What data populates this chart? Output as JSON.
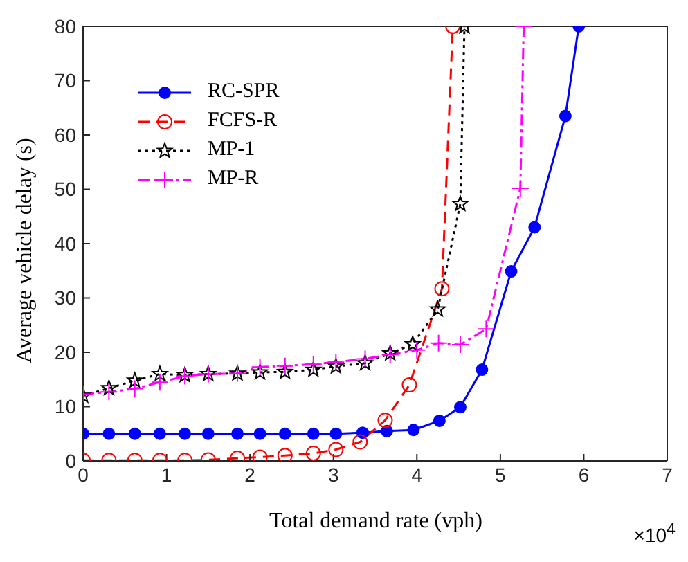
{
  "chart_data": {
    "type": "line",
    "xlabel": "Total demand rate (vph)",
    "ylabel": "Average vehicle delay (s)",
    "xlim": [
      0,
      7
    ],
    "xticks": [
      0,
      1,
      2,
      3,
      4,
      5,
      6,
      7
    ],
    "ylim": [
      0,
      80
    ],
    "yticks": [
      0,
      10,
      20,
      30,
      40,
      50,
      60,
      70,
      80
    ],
    "grid": false,
    "legend": "top left",
    "annotations": [
      "×10$^{4}$"
    ],
    "series": [
      {
        "name": "RC-SPR",
        "color": "#0000ff",
        "marker": "circle",
        "line_style": "solid",
        "x": [
          0,
          0.31,
          0.62,
          0.92,
          1.22,
          1.5,
          1.85,
          2.12,
          2.42,
          2.76,
          3.03,
          3.35,
          3.64,
          3.96,
          4.27,
          4.52,
          4.78,
          5.13,
          5.41,
          5.78,
          5.94
        ],
        "values": [
          5,
          5,
          5,
          5,
          5,
          5,
          5,
          5,
          5,
          5,
          5,
          5.2,
          5.5,
          5.7,
          7.4,
          9.9,
          16.8,
          34.9,
          43,
          63.5,
          80
        ]
      },
      {
        "name": "FCFS-R",
        "color": "#ff0000",
        "marker": "open-circle",
        "line_style": "dashed",
        "x": [
          0,
          0.31,
          0.62,
          0.92,
          1.22,
          1.5,
          1.85,
          2.12,
          2.42,
          2.76,
          3.03,
          3.32,
          3.62,
          3.91,
          4.3,
          4.43
        ],
        "values": [
          0.1,
          0.1,
          0.1,
          0.1,
          0.1,
          0.2,
          0.5,
          0.7,
          1,
          1.4,
          2.1,
          3.5,
          7.5,
          14,
          31.7,
          80
        ]
      },
      {
        "name": "MP-1",
        "color": "#000000",
        "marker": "star",
        "line_style": "dotted",
        "x": [
          0,
          0.31,
          0.62,
          0.92,
          1.22,
          1.5,
          1.85,
          2.12,
          2.42,
          2.76,
          3.03,
          3.38,
          3.68,
          3.95,
          4.25,
          4.52,
          4.57
        ],
        "values": [
          12,
          13.4,
          14.8,
          16,
          15.8,
          16,
          16.1,
          16.3,
          16.4,
          16.8,
          17.4,
          18,
          19.8,
          21.5,
          27.9,
          47.3,
          80
        ]
      },
      {
        "name": "MP-R",
        "color": "#ff00ff",
        "marker": "cross",
        "line_style": "dashdot",
        "x": [
          0,
          0.31,
          0.62,
          0.92,
          1.22,
          1.5,
          1.85,
          2.12,
          2.42,
          2.76,
          3.03,
          3.38,
          3.68,
          4,
          4.26,
          4.52,
          4.83,
          5.24,
          5.28
        ],
        "values": [
          12.3,
          12.7,
          13.3,
          14.5,
          15.6,
          16,
          16.1,
          17.3,
          17.5,
          17.8,
          18.2,
          18.8,
          19.6,
          20.4,
          21.7,
          21.4,
          24.3,
          50.2,
          80
        ]
      }
    ]
  }
}
